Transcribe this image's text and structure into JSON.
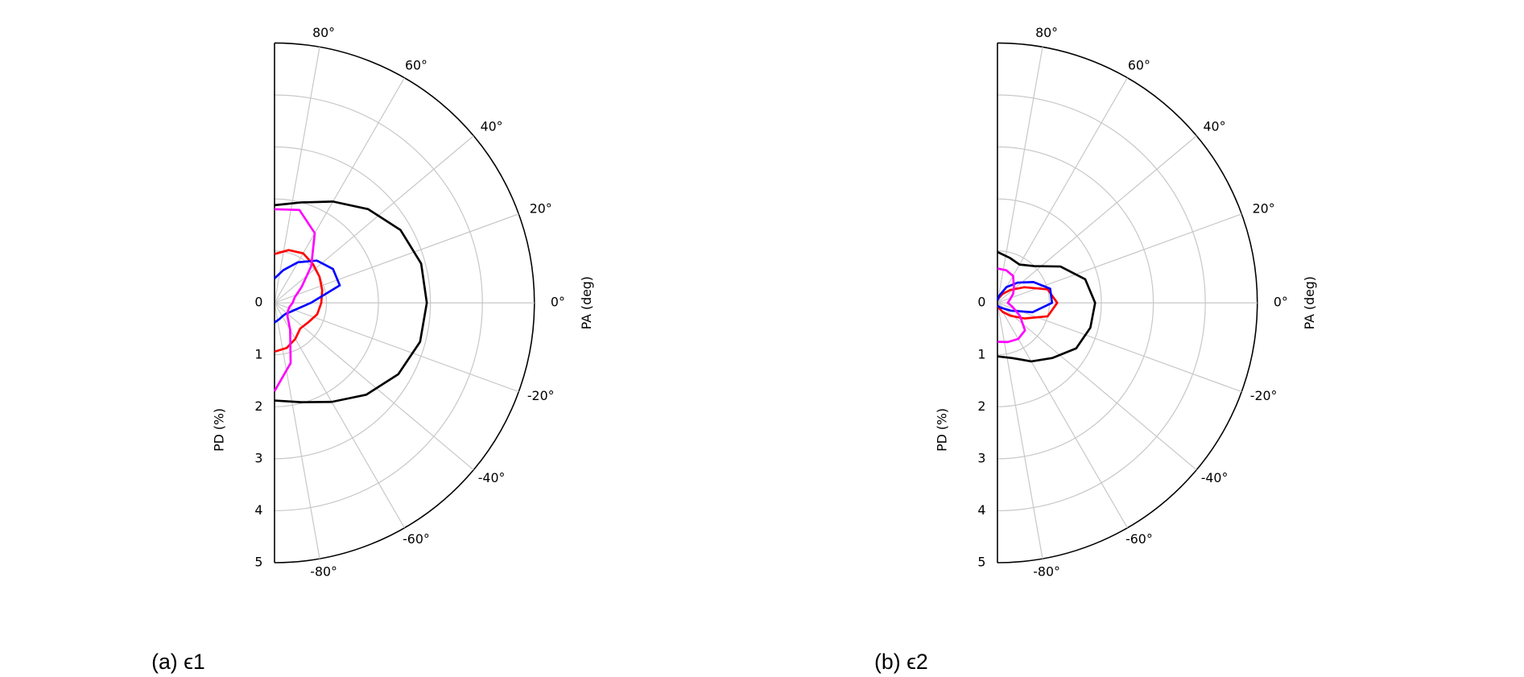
{
  "chart_data": [
    {
      "type": "polar",
      "title": "(a) ϵ1",
      "xlabel": "PA (deg)",
      "ylabel": "PD (%)",
      "x": [
        90,
        75,
        60,
        45,
        30,
        15,
        0,
        -15,
        -30,
        -45,
        -60,
        -75,
        -90
      ],
      "xlim": [
        -90,
        90
      ],
      "xticks": [
        {
          "value": -80,
          "label": "-80°"
        },
        {
          "value": -60,
          "label": "-60°"
        },
        {
          "value": -40,
          "label": "-40°"
        },
        {
          "value": -20,
          "label": "-20°"
        },
        {
          "value": 0,
          "label": "0°"
        },
        {
          "value": 20,
          "label": "20°"
        },
        {
          "value": 40,
          "label": "40°"
        },
        {
          "value": 60,
          "label": "60°"
        },
        {
          "value": 80,
          "label": "80°"
        }
      ],
      "ylim": [
        0,
        5
      ],
      "yticks": [
        0,
        1,
        2,
        3,
        4,
        5
      ],
      "grid": true,
      "series": [
        {
          "color": "#000000",
          "values": [
            1.88,
            2.0,
            2.25,
            2.55,
            2.8,
            2.92,
            2.93,
            2.9,
            2.75,
            2.5,
            2.2,
            1.98,
            1.88
          ]
        },
        {
          "color": "#ff0000",
          "values": [
            0.94,
            1.05,
            1.1,
            1.05,
            1.0,
            0.95,
            0.9,
            0.85,
            0.75,
            0.7,
            0.8,
            0.9,
            0.94
          ]
        },
        {
          "color": "#0000ff",
          "values": [
            0.47,
            0.65,
            0.9,
            1.15,
            1.3,
            1.3,
            0.7,
            0.45,
            0.35,
            0.3,
            0.3,
            0.33,
            0.38
          ]
        },
        {
          "color": "#ff00ff",
          "values": [
            1.8,
            1.85,
            1.55,
            1.0,
            0.6,
            0.4,
            0.35,
            0.3,
            0.3,
            0.35,
            0.6,
            1.2,
            1.7
          ]
        }
      ]
    },
    {
      "type": "polar",
      "title": "(b) ϵ2",
      "xlabel": "PA (deg)",
      "ylabel": "PD (%)",
      "x": [
        90,
        75,
        60,
        45,
        30,
        15,
        0,
        -15,
        -30,
        -45,
        -60,
        -75,
        -90
      ],
      "xlim": [
        -90,
        90
      ],
      "xticks": [
        {
          "value": -80,
          "label": "-80°"
        },
        {
          "value": -60,
          "label": "-60°"
        },
        {
          "value": -40,
          "label": "-40°"
        },
        {
          "value": -20,
          "label": "-20°"
        },
        {
          "value": 0,
          "label": "0°"
        },
        {
          "value": 20,
          "label": "20°"
        },
        {
          "value": 40,
          "label": "40°"
        },
        {
          "value": 60,
          "label": "60°"
        },
        {
          "value": 80,
          "label": "80°"
        }
      ],
      "ylim": [
        0,
        5
      ],
      "yticks": [
        0,
        1,
        2,
        3,
        4,
        5
      ],
      "grid": true,
      "series": [
        {
          "color": "#000000",
          "values": [
            0.98,
            0.9,
            0.85,
            1.0,
            1.4,
            1.75,
            1.88,
            1.85,
            1.75,
            1.5,
            1.3,
            1.1,
            1.03
          ]
        },
        {
          "color": "#ff0000",
          "values": [
            0.05,
            0.1,
            0.2,
            0.35,
            0.6,
            1.0,
            1.15,
            1.0,
            0.6,
            0.35,
            0.2,
            0.1,
            0.05
          ]
        },
        {
          "color": "#0000ff",
          "values": [
            0.05,
            0.15,
            0.35,
            0.55,
            0.8,
            1.05,
            1.05,
            0.7,
            0.3,
            0.15,
            0.1,
            0.07,
            0.05
          ]
        },
        {
          "color": "#ff00ff",
          "values": [
            0.66,
            0.65,
            0.6,
            0.45,
            0.35,
            0.25,
            0.2,
            0.3,
            0.5,
            0.75,
            0.8,
            0.78,
            0.75
          ]
        }
      ]
    }
  ]
}
